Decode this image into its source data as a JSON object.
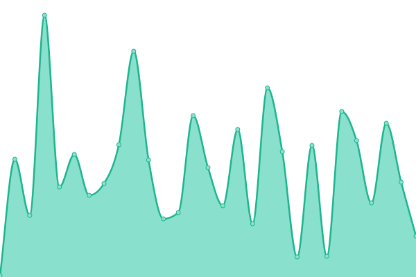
{
  "chart_data": {
    "type": "area",
    "values": [
      2,
      170,
      89,
      378,
      130,
      177,
      118,
      135,
      191,
      326,
      169,
      84,
      93,
      233,
      158,
      103,
      213,
      77,
      273,
      181,
      29,
      190,
      30,
      239,
      197,
      107,
      222,
      137,
      59
    ],
    "color": "#1db58f",
    "fill_color": "#89e0cc",
    "ylim": [
      0,
      400
    ]
  }
}
